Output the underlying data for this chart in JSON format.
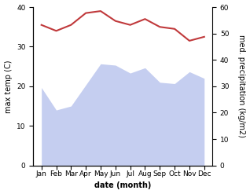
{
  "months": [
    "Jan",
    "Feb",
    "Mar",
    "Apr",
    "May",
    "Jun",
    "Jul",
    "Aug",
    "Sep",
    "Oct",
    "Nov",
    "Dec"
  ],
  "temp_max": [
    35.5,
    34.0,
    35.5,
    38.5,
    39.0,
    36.5,
    35.5,
    37.0,
    35.0,
    34.5,
    31.5,
    32.5
  ],
  "precipitation": [
    29.5,
    21.0,
    22.5,
    30.5,
    38.5,
    38.0,
    35.0,
    37.0,
    31.5,
    31.0,
    35.5,
    33.0
  ],
  "temp_color": "#c0393b",
  "precip_fill_color": "#c5cef0",
  "ylim_left": [
    0,
    40
  ],
  "ylim_right": [
    0,
    60
  ],
  "ylabel_left": "max temp (C)",
  "ylabel_right": "med. precipitation (kg/m2)",
  "xlabel": "date (month)",
  "bg_color": "#ffffff",
  "label_fontsize": 7,
  "tick_fontsize": 6.5
}
